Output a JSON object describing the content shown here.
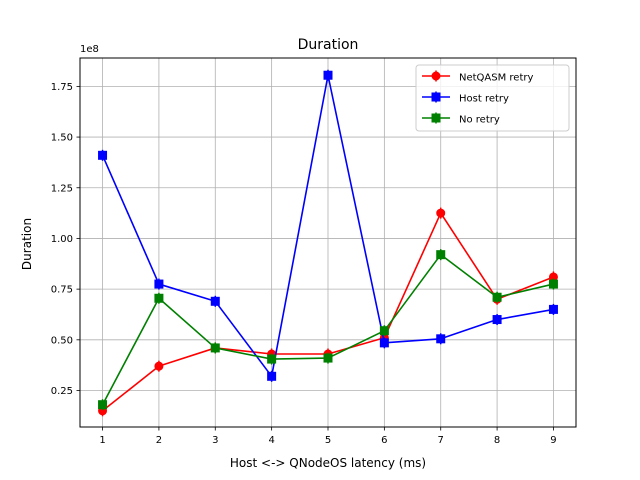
{
  "chart_data": {
    "type": "line",
    "title": "Duration",
    "xlabel": "Host <-> QNodeOS latency (ms)",
    "ylabel": "Duration",
    "y_multiplier_label": "1e8",
    "x": [
      1,
      2,
      3,
      4,
      5,
      6,
      7,
      8,
      9
    ],
    "x_tick_labels": [
      "1",
      "2",
      "3",
      "4",
      "5",
      "6",
      "7",
      "8",
      "9"
    ],
    "y_ticks": [
      0.25,
      0.5,
      0.75,
      1.0,
      1.25,
      1.5,
      1.75
    ],
    "y_tick_labels": [
      "0.25",
      "0.50",
      "0.75",
      "1.00",
      "1.25",
      "1.50",
      "1.75"
    ],
    "xlim": [
      0.6,
      9.4
    ],
    "ylim": [
      0.07,
      1.89
    ],
    "grid": true,
    "legend_position": "top-right",
    "series": [
      {
        "name": "NetQASM retry",
        "color": "#ff0000",
        "marker": "circle",
        "values": [
          0.15,
          0.37,
          0.46,
          0.43,
          0.43,
          0.51,
          1.125,
          0.7,
          0.81
        ]
      },
      {
        "name": "Host retry",
        "color": "#0000ff",
        "marker": "square",
        "values": [
          1.41,
          0.775,
          0.69,
          0.32,
          1.805,
          0.485,
          0.505,
          0.6,
          0.65
        ]
      },
      {
        "name": "No retry",
        "color": "#008000",
        "marker": "square",
        "values": [
          0.18,
          0.705,
          0.46,
          0.405,
          0.41,
          0.545,
          0.92,
          0.71,
          0.775
        ]
      }
    ]
  }
}
